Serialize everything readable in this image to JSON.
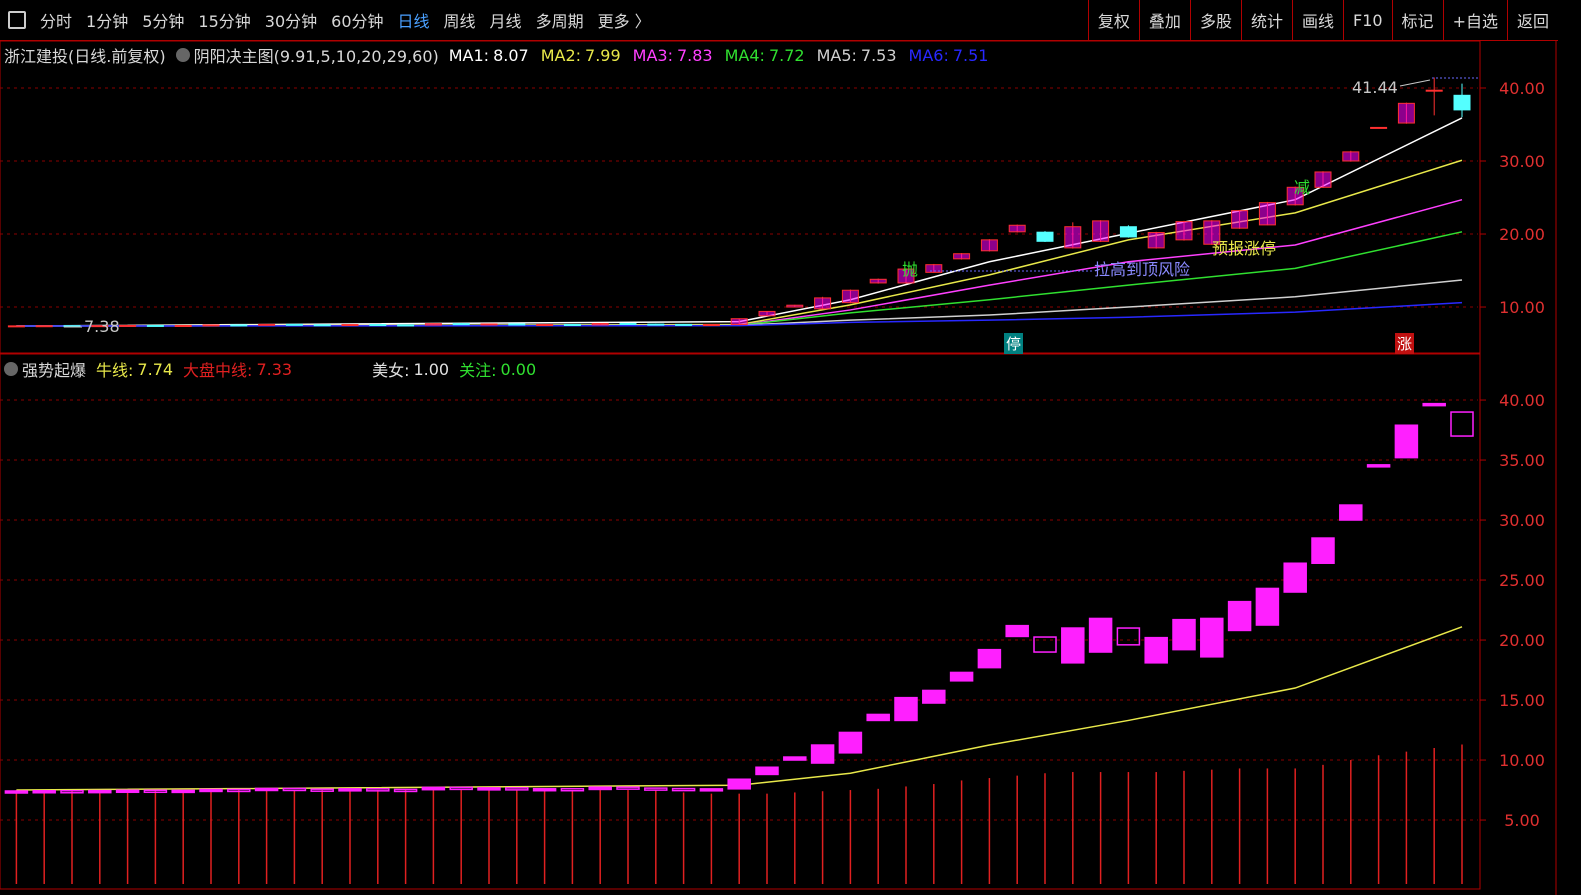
{
  "toolbar": {
    "tabs": [
      "分时",
      "1分钟",
      "5分钟",
      "15分钟",
      "30分钟",
      "60分钟",
      "日线",
      "周线",
      "月线",
      "多周期",
      "更多 〉"
    ],
    "active_index": 6,
    "buttons": [
      "复权",
      "叠加",
      "多股",
      "统计",
      "画线",
      "F10",
      "标记",
      "+自选",
      "返回"
    ]
  },
  "chart_data": [
    {
      "type": "candlestick",
      "title": "浙江建投(日线.前复权)",
      "indicator": "阴阳决主图(9.91,5,10,20,29,60)",
      "candles": [
        [
          7.4,
          7.45,
          7.38,
          7.42
        ],
        [
          7.42,
          7.48,
          7.39,
          7.44
        ],
        [
          7.44,
          7.5,
          7.4,
          7.41
        ],
        [
          7.41,
          7.47,
          7.39,
          7.45
        ],
        [
          7.45,
          7.52,
          7.42,
          7.48
        ],
        [
          7.48,
          7.53,
          7.42,
          7.44
        ],
        [
          7.44,
          7.5,
          7.4,
          7.47
        ],
        [
          7.47,
          7.58,
          7.45,
          7.55
        ],
        [
          7.55,
          7.6,
          7.48,
          7.5
        ],
        [
          7.5,
          7.66,
          7.48,
          7.63
        ],
        [
          7.63,
          7.68,
          7.54,
          7.57
        ],
        [
          7.57,
          7.62,
          7.5,
          7.52
        ],
        [
          7.52,
          7.62,
          7.49,
          7.6
        ],
        [
          7.6,
          7.65,
          7.52,
          7.55
        ],
        [
          7.55,
          7.6,
          7.49,
          7.53
        ],
        [
          7.53,
          7.74,
          7.51,
          7.72
        ],
        [
          7.72,
          7.8,
          7.6,
          7.64
        ],
        [
          7.64,
          7.72,
          7.57,
          7.68
        ],
        [
          7.68,
          7.72,
          7.55,
          7.58
        ],
        [
          7.58,
          7.64,
          7.52,
          7.61
        ],
        [
          7.61,
          7.67,
          7.53,
          7.55
        ],
        [
          7.55,
          7.76,
          7.53,
          7.74
        ],
        [
          7.74,
          7.8,
          7.62,
          7.66
        ],
        [
          7.66,
          7.72,
          7.57,
          7.62
        ],
        [
          7.62,
          7.68,
          7.48,
          7.52
        ],
        [
          7.52,
          7.64,
          7.46,
          7.6
        ],
        [
          7.6,
          8.45,
          7.55,
          8.4
        ],
        [
          8.8,
          9.4,
          8.75,
          9.4
        ],
        [
          10.0,
          10.3,
          9.95,
          10.25
        ],
        [
          9.75,
          11.4,
          9.7,
          11.25
        ],
        [
          10.6,
          12.4,
          10.5,
          12.3
        ],
        [
          13.3,
          13.9,
          13.2,
          13.8
        ],
        [
          13.3,
          15.3,
          13.2,
          15.2
        ],
        [
          14.75,
          15.9,
          14.7,
          15.8
        ],
        [
          16.6,
          17.4,
          16.5,
          17.3
        ],
        [
          17.7,
          19.3,
          17.6,
          19.2
        ],
        [
          20.3,
          21.3,
          20.2,
          21.2
        ],
        [
          20.25,
          20.4,
          18.9,
          19.0
        ],
        [
          18.1,
          21.6,
          18.0,
          21.0
        ],
        [
          19.0,
          21.9,
          18.9,
          21.8
        ],
        [
          21.0,
          21.2,
          19.5,
          19.6
        ],
        [
          18.1,
          20.3,
          18.0,
          20.2
        ],
        [
          19.2,
          21.8,
          19.1,
          21.7
        ],
        [
          18.6,
          21.9,
          18.5,
          21.8
        ],
        [
          20.8,
          23.3,
          20.7,
          23.2
        ],
        [
          21.25,
          24.4,
          21.2,
          24.3
        ],
        [
          24.0,
          26.5,
          23.9,
          26.4
        ],
        [
          26.4,
          28.6,
          26.3,
          28.5
        ],
        [
          30.0,
          31.4,
          29.9,
          31.25
        ],
        [
          34.6,
          34.6,
          34.6,
          34.6
        ],
        [
          35.2,
          38.0,
          35.1,
          37.9
        ],
        [
          39.6,
          41.44,
          36.25,
          39.7
        ],
        [
          39.0,
          40.6,
          36.0,
          37.0
        ]
      ],
      "up_color": "#ff3030",
      "up_fill": "#ff00ff",
      "down_color": "#54ffff",
      "series": [
        {
          "name": "MA1:",
          "value": 8.07,
          "color": "#ffffff",
          "x": [
            0,
            26,
            30,
            35,
            40,
            46,
            52
          ],
          "values": [
            7.4,
            8.0,
            11.0,
            16.2,
            20.1,
            24.7,
            35.9
          ]
        },
        {
          "name": "MA2:",
          "value": 7.99,
          "color": "#e8e84a",
          "x": [
            0,
            26,
            30,
            35,
            40,
            46,
            52
          ],
          "values": [
            7.4,
            7.6,
            10.3,
            14.4,
            19.2,
            22.9,
            30.1
          ]
        },
        {
          "name": "MA3:",
          "value": 7.83,
          "color": "#ff40ff",
          "x": [
            0,
            26,
            30,
            35,
            40,
            46,
            52
          ],
          "values": [
            7.4,
            7.5,
            9.6,
            13.0,
            16.2,
            18.5,
            24.7
          ]
        },
        {
          "name": "MA4:",
          "value": 7.72,
          "color": "#30e030",
          "x": [
            0,
            26,
            30,
            35,
            40,
            46,
            52
          ],
          "values": [
            7.4,
            7.5,
            9.2,
            11.0,
            13.0,
            15.3,
            20.3
          ]
        },
        {
          "name": "MA5:",
          "value": 7.53,
          "color": "#d0d0d0",
          "x": [
            0,
            26,
            30,
            35,
            40,
            46,
            52
          ],
          "values": [
            7.4,
            7.5,
            8.2,
            8.9,
            10.0,
            11.4,
            13.7
          ]
        },
        {
          "name": "MA6:",
          "value": 7.51,
          "color": "#2828ff",
          "x": [
            0,
            26,
            30,
            35,
            40,
            46,
            52
          ],
          "values": [
            7.4,
            7.45,
            7.9,
            8.2,
            8.6,
            9.3,
            10.6
          ]
        }
      ],
      "annotations": [
        "拉高到顶风险",
        "预报涨停",
        "减",
        "抛",
        "停",
        "涨"
      ],
      "ylim": [
        3.84,
        46.3
      ],
      "yticks": [
        {
          "value": 10,
          "label": "10.00"
        },
        {
          "value": 20,
          "label": "20.00"
        },
        {
          "value": 30,
          "label": "30.00"
        },
        {
          "value": 40,
          "label": "40.00"
        }
      ],
      "grid": true
    },
    {
      "type": "box",
      "title": "强势起爆",
      "box_color": "#ff20ff",
      "series": [
        {
          "name": "牛线:",
          "value": 7.74,
          "color": "#e8e84a",
          "type": "line",
          "x": [
            0,
            26,
            30,
            35,
            40,
            46,
            52
          ],
          "values": [
            7.5,
            7.9,
            8.9,
            11.25,
            13.3,
            16.0,
            21.1
          ]
        },
        {
          "name": "大盘中线:",
          "value": 7.33,
          "color": "#e02020",
          "type": "bar",
          "values": [
            7.5,
            7.5,
            7.5,
            7.5,
            7.5,
            7.5,
            7.5,
            7.5,
            7.5,
            7.5,
            7.5,
            7.5,
            7.5,
            7.5,
            7.5,
            7.5,
            7.5,
            7.5,
            7.5,
            7.5,
            7.5,
            7.5,
            7.5,
            7.5,
            7.3,
            7.2,
            7.2,
            7.2,
            7.3,
            7.4,
            7.5,
            7.6,
            7.8,
            8.0,
            8.3,
            8.5,
            8.7,
            8.9,
            9.0,
            9.0,
            9.0,
            9.0,
            9.1,
            9.2,
            9.3,
            9.3,
            9.3,
            9.6,
            10.0,
            10.4,
            10.7,
            11.0,
            11.3
          ]
        },
        {
          "name": "美女:",
          "value": 1,
          "value_label": "1.00",
          "color": "#e0e0e0"
        },
        {
          "name": "关注:",
          "value": 0,
          "value_label": "0.00",
          "color": "#30e030"
        }
      ],
      "ylim": [
        -0.33,
        43.67
      ],
      "yticks": [
        {
          "value": 5,
          "label": "5.00"
        },
        {
          "value": 10,
          "label": "10.00"
        },
        {
          "value": 15,
          "label": "15.00"
        },
        {
          "value": 20,
          "label": "20.00"
        },
        {
          "value": 25,
          "label": "25.00"
        },
        {
          "value": 30,
          "label": "30.00"
        },
        {
          "value": 35,
          "label": "35.00"
        },
        {
          "value": 40,
          "label": "40.00"
        }
      ],
      "grid": true
    }
  ]
}
